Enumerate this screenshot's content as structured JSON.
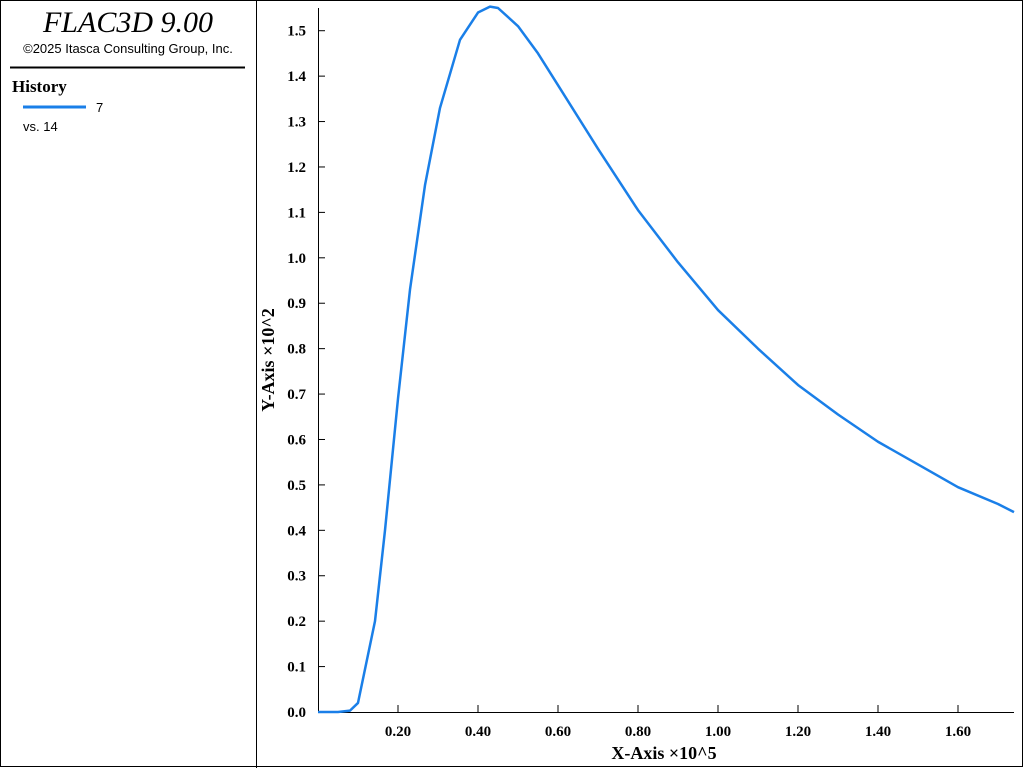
{
  "header": {
    "title": "FLAC3D 9.00",
    "copyright": "©2025 Itasca Consulting Group, Inc."
  },
  "legend": {
    "title": "History",
    "vs": "vs. 14"
  },
  "chart_data": {
    "type": "line",
    "x_label": "X-Axis ×10^5",
    "y_label": "Y-Axis ×10^2",
    "x": [
      0,
      0.05,
      0.08,
      0.1,
      0.1425,
      0.1675,
      0.2,
      0.23,
      0.2675,
      0.305,
      0.355,
      0.4,
      0.43,
      0.45,
      0.5,
      0.55,
      0.6,
      0.7,
      0.8,
      0.9,
      1.0,
      1.1,
      1.2,
      1.3,
      1.4,
      1.5,
      1.6,
      1.7,
      1.74
    ],
    "series": [
      {
        "name": "7",
        "color": "#1a7fe8",
        "values": [
          0,
          0,
          0.003,
          0.02,
          0.2,
          0.4,
          0.69,
          0.93,
          1.16,
          1.33,
          1.48,
          1.54,
          1.553,
          1.55,
          1.51,
          1.45,
          1.38,
          1.24,
          1.105,
          0.99,
          0.885,
          0.8,
          0.72,
          0.655,
          0.595,
          0.545,
          0.495,
          0.458,
          0.44
        ]
      }
    ],
    "xlim": [
      0,
      1.74
    ],
    "ylim": [
      0,
      1.55
    ],
    "xticks": [
      {
        "value": 0.2,
        "label": "0.20"
      },
      {
        "value": 0.4,
        "label": "0.40"
      },
      {
        "value": 0.6,
        "label": "0.60"
      },
      {
        "value": 0.8,
        "label": "0.80"
      },
      {
        "value": 1.0,
        "label": "1.00"
      },
      {
        "value": 1.2,
        "label": "1.20"
      },
      {
        "value": 1.4,
        "label": "1.40"
      },
      {
        "value": 1.6,
        "label": "1.60"
      }
    ],
    "yticks": [
      {
        "value": 0,
        "label": "0.0"
      },
      0.1,
      0.2,
      0.3,
      0.4,
      0.5,
      0.6,
      0.7,
      0.8,
      0.9,
      {
        "value": 1.0,
        "label": "1.0"
      },
      1.1,
      1.2,
      1.3,
      1.4,
      1.5
    ]
  }
}
